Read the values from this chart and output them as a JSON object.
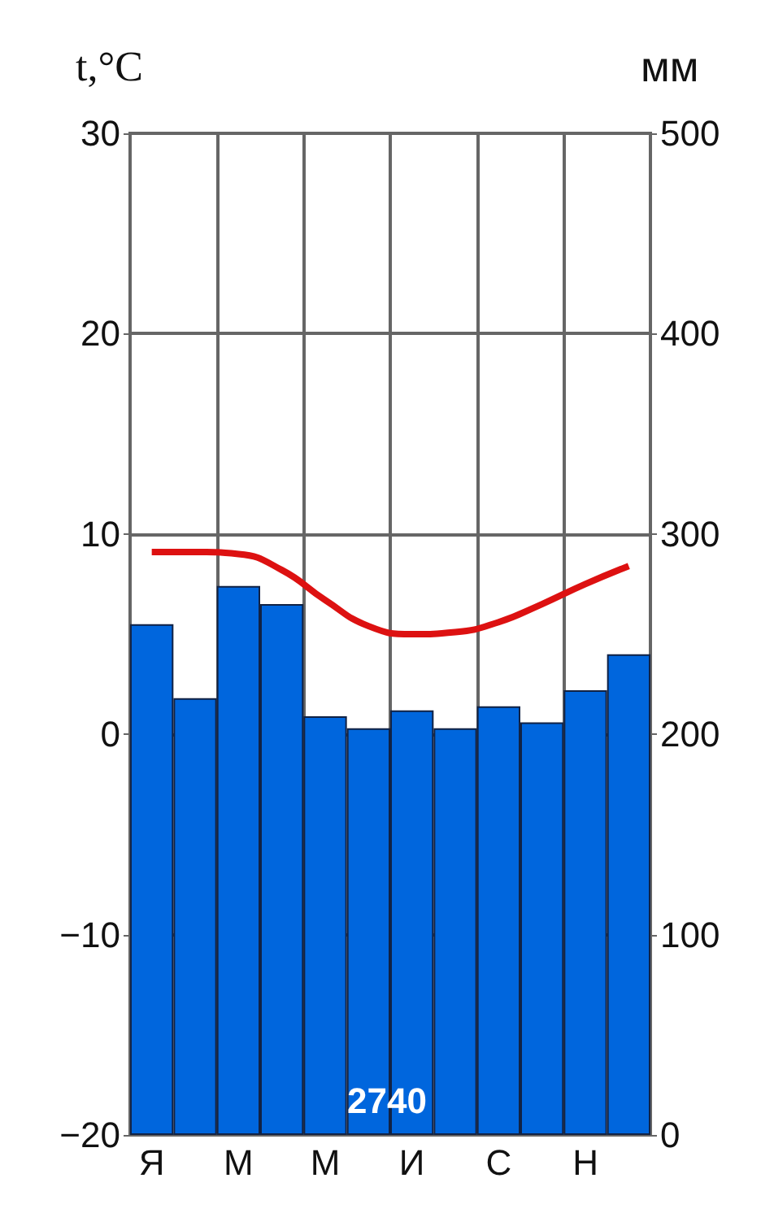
{
  "chart_data": {
    "type": "bar",
    "ylabel": "t,°C",
    "y2label": "мм",
    "categories": [
      "Я",
      null,
      "М",
      null,
      "М",
      null,
      "И",
      null,
      "С",
      null,
      "Н",
      null
    ],
    "series": [
      {
        "axis": "y2",
        "color": "#0066dd",
        "values": [
          255,
          218,
          274,
          265,
          209,
          203,
          212,
          203,
          214,
          206,
          222,
          240
        ]
      },
      {
        "type": "line",
        "axis": "y",
        "color": "#dd1111",
        "values": [
          9.1,
          9.1,
          9.0,
          8.2,
          6.7,
          5.4,
          5.0,
          5.1,
          5.6,
          6.5,
          7.5,
          8.4
        ]
      }
    ],
    "ylim": [
      -20,
      30
    ],
    "yticks": [
      -20,
      -10,
      0,
      10,
      20,
      30
    ],
    "y2lim": [
      0,
      500
    ],
    "y2ticks": [
      0,
      100,
      200,
      300,
      400,
      500
    ],
    "grid": true,
    "marker": "none",
    "annotations": [
      "2740"
    ]
  }
}
